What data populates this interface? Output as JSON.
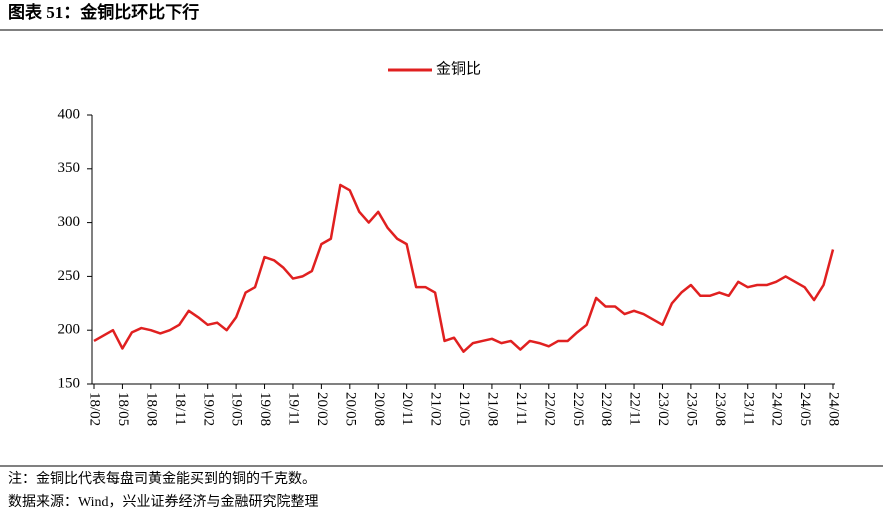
{
  "header": {
    "title": "图表 51：金铜比环比下行"
  },
  "chart_data": {
    "type": "line",
    "categories": [
      "18/02",
      null,
      null,
      "18/05",
      null,
      null,
      "18/08",
      null,
      null,
      "18/11",
      null,
      null,
      "19/02",
      null,
      null,
      "19/05",
      null,
      null,
      "19/08",
      null,
      null,
      "19/11",
      null,
      null,
      "20/02",
      null,
      null,
      "20/05",
      null,
      null,
      "20/08",
      null,
      null,
      "20/11",
      null,
      null,
      "21/02",
      null,
      null,
      "21/05",
      null,
      null,
      "21/08",
      null,
      null,
      "21/11",
      null,
      null,
      "22/02",
      null,
      null,
      "22/05",
      null,
      null,
      "22/08",
      null,
      null,
      "22/11",
      null,
      null,
      "23/02",
      null,
      null,
      "23/05",
      null,
      null,
      "23/08",
      null,
      null,
      "23/11",
      null,
      null,
      "24/02",
      null,
      null,
      "24/05",
      null,
      null,
      "24/08"
    ],
    "series": [
      {
        "name": "金铜比",
        "color": "#e02020",
        "values": [
          190,
          195,
          200,
          183,
          198,
          202,
          200,
          197,
          200,
          205,
          218,
          212,
          205,
          207,
          200,
          212,
          235,
          240,
          268,
          265,
          258,
          248,
          250,
          255,
          280,
          285,
          335,
          330,
          310,
          300,
          310,
          295,
          285,
          280,
          240,
          240,
          235,
          190,
          193,
          180,
          188,
          190,
          192,
          188,
          190,
          182,
          190,
          188,
          185,
          190,
          190,
          198,
          205,
          230,
          222,
          222,
          215,
          218,
          215,
          210,
          205,
          225,
          235,
          242,
          232,
          232,
          235,
          232,
          245,
          240,
          242,
          242,
          245,
          250,
          245,
          240,
          228,
          242,
          275
        ]
      }
    ],
    "ylim": [
      150,
      400
    ],
    "yticks": [
      150,
      200,
      250,
      300,
      350,
      400
    ]
  },
  "notes": [
    "注：金铜比代表每盘司黄金能买到的铜的千克数。",
    "数据来源：Wind，兴业证券经济与金融研究院整理"
  ]
}
